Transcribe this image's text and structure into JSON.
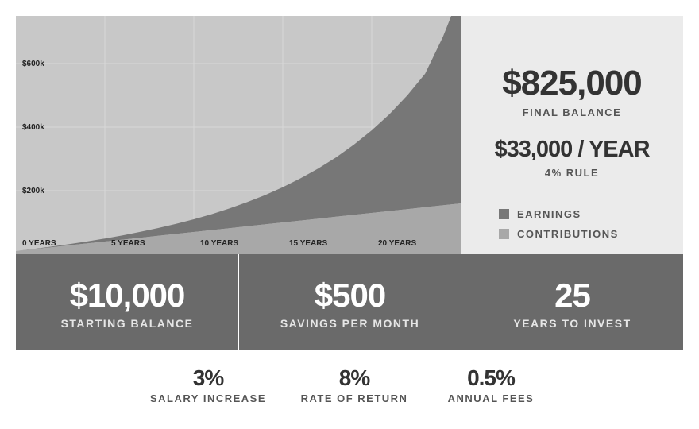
{
  "chart_data": {
    "type": "area",
    "x": [
      0,
      1,
      2,
      3,
      4,
      5,
      6,
      7,
      8,
      9,
      10,
      11,
      12,
      13,
      14,
      15,
      16,
      17,
      18,
      19,
      20,
      21,
      22,
      23,
      24,
      25
    ],
    "x_tick_labels": [
      "0 YEARS",
      "5 YEARS",
      "10 YEARS",
      "15 YEARS",
      "20 YEARS"
    ],
    "x_ticks": [
      0,
      5,
      10,
      15,
      20
    ],
    "y_tick_labels": [
      "$200k",
      "$400k",
      "$600k"
    ],
    "y_ticks": [
      200000,
      400000,
      600000
    ],
    "xlim": [
      0,
      25
    ],
    "ylim": [
      0,
      750000
    ],
    "grid": true,
    "series": [
      {
        "name": "CONTRIBUTIONS",
        "color": "#a8a8a8",
        "values": [
          10000,
          16000,
          22000,
          28000,
          34000,
          40000,
          46000,
          52000,
          58000,
          64000,
          70000,
          76000,
          82000,
          88000,
          94000,
          100000,
          106000,
          112000,
          118000,
          124000,
          130000,
          136000,
          142000,
          148000,
          154000,
          160000
        ]
      },
      {
        "name": "EARNINGS",
        "color": "#777777",
        "values": [
          0,
          800,
          2000,
          3800,
          6200,
          9500,
          13500,
          18500,
          24500,
          31500,
          40000,
          50000,
          62000,
          76000,
          92000,
          111000,
          133000,
          158000,
          187000,
          221000,
          260000,
          305000,
          358000,
          420000,
          530000,
          665000
        ]
      }
    ]
  },
  "summary": {
    "final_balance": "$825,000",
    "final_balance_label": "FINAL BALANCE",
    "per_year": "$33,000 / YEAR",
    "rule_label": "4% RULE",
    "legend": [
      {
        "label": "EARNINGS",
        "color": "#777777"
      },
      {
        "label": "CONTRIBUTIONS",
        "color": "#a8a8a8"
      }
    ]
  },
  "inputs": [
    {
      "value": "$10,000",
      "label": "STARTING BALANCE"
    },
    {
      "value": "$500",
      "label": "SAVINGS PER MONTH"
    },
    {
      "value": "25",
      "label": "YEARS TO INVEST"
    }
  ],
  "params": [
    {
      "value": "3%",
      "label": "SALARY INCREASE"
    },
    {
      "value": "8%",
      "label": "RATE OF RETURN"
    },
    {
      "value": "0.5%",
      "label": "ANNUAL FEES"
    }
  ]
}
